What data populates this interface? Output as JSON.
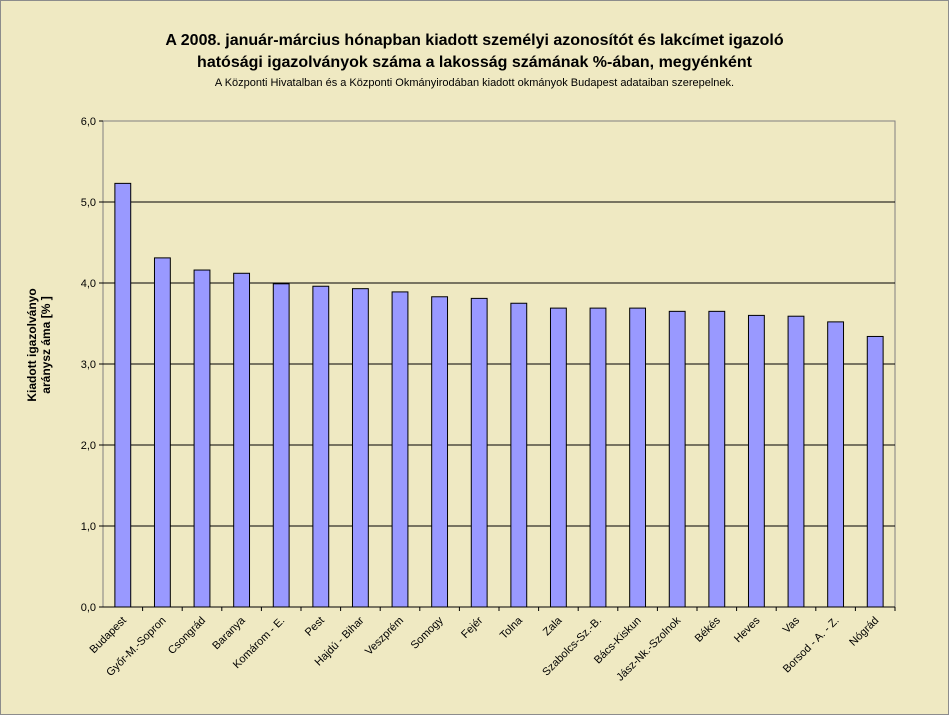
{
  "chart_data": {
    "type": "bar",
    "title_line1": "A 2008. január-március hónapban kiadott személyi azonosítót és lakcímet igazoló",
    "title_line2": "hatósági igazolványok száma a lakosság  számának %-ában, megyénként",
    "subtitle": "A Központi Hivatalban és a Központi Okmányirodában kiadott okmányok Budapest adataiban szerepelnek.",
    "ylabel_line1": "Kiadott igazolványo",
    "ylabel_line2": "aránysz áma [% ]",
    "xlabel": "",
    "ylim": [
      0,
      6
    ],
    "yticks": [
      "0,0",
      "1,0",
      "2,0",
      "3,0",
      "4,0",
      "5,0",
      "6,0"
    ],
    "grid": true,
    "bar_color": "#9999ff",
    "background_color": "#efe9c2",
    "plot_color": "#efe9c2",
    "categories": [
      "Budapest",
      "Győr-M.-Sopron",
      "Csongrád",
      "Baranya",
      "Komárom - E.",
      "Pest",
      "Hajdú - Bihar",
      "Veszprém",
      "Somogy",
      "Fejér",
      "Tolna",
      "Zala",
      "Szabolcs-Sz.-B.",
      "Bács-Kiskun",
      "Jász-Nk.-Szolnok",
      "Békés",
      "Heves",
      "Vas",
      "Borsod - A. - Z.",
      "Nógrád"
    ],
    "values": [
      5.23,
      4.31,
      4.16,
      4.12,
      3.99,
      3.96,
      3.93,
      3.89,
      3.83,
      3.81,
      3.75,
      3.69,
      3.69,
      3.69,
      3.65,
      3.65,
      3.6,
      3.59,
      3.52,
      3.34
    ]
  }
}
